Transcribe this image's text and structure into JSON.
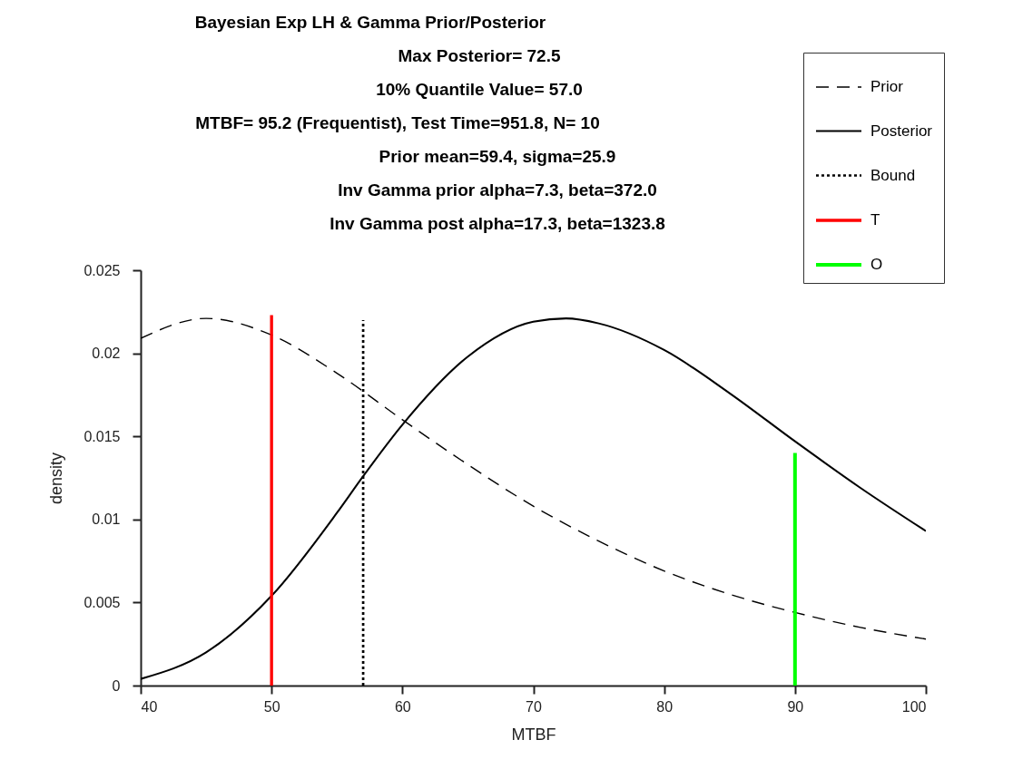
{
  "chart_data": {
    "type": "line",
    "title": "Bayesian Exp LH & Gamma Prior/Posterior",
    "annotations": [
      "Max Posterior= 72.5",
      "10% Quantile Value= 57.0",
      "MTBF= 95.2 (Frequentist), Test Time=951.8, N= 10",
      "Prior mean=59.4, sigma=25.9",
      "Inv Gamma prior alpha=7.3, beta=372.0",
      "Inv Gamma post alpha=17.3, beta=1323.8"
    ],
    "xlabel": "MTBF",
    "ylabel": "density",
    "x": [
      40,
      45,
      50,
      55,
      60,
      65,
      70,
      75,
      80,
      85,
      90,
      95,
      100
    ],
    "series": [
      {
        "name": "Prior",
        "color": "#000000",
        "line_style": "dashed",
        "values": [
          0.0209,
          0.0221,
          0.0211,
          0.0188,
          0.016,
          0.0133,
          0.0108,
          0.0087,
          0.0069,
          0.0055,
          0.0044,
          0.0035,
          0.0028
        ]
      },
      {
        "name": "Posterior",
        "color": "#000000",
        "line_style": "solid",
        "x": [
          40,
          45,
          50,
          55,
          57,
          60,
          65,
          70,
          72.5,
          75,
          80,
          85,
          90,
          95,
          100
        ],
        "values": [
          0.0004,
          0.002,
          0.0054,
          0.0104,
          0.0126,
          0.0157,
          0.0198,
          0.0219,
          0.0221,
          0.0218,
          0.0202,
          0.0176,
          0.0147,
          0.0119,
          0.0093
        ]
      },
      {
        "name": "Bound",
        "color": "#000000",
        "line_style": "dotted",
        "x": [
          57,
          57
        ],
        "values": [
          0,
          0.022
        ]
      },
      {
        "name": "T",
        "color": "#ff0000",
        "line_style": "solid",
        "x": [
          50,
          50
        ],
        "values": [
          0,
          0.0223
        ]
      },
      {
        "name": "O",
        "color": "#00ff00",
        "line_style": "solid",
        "x": [
          90,
          90
        ],
        "values": [
          0,
          0.014
        ]
      }
    ],
    "xlim": [
      40,
      100
    ],
    "xticks": [
      40,
      50,
      60,
      70,
      80,
      90,
      100
    ],
    "ylim": [
      0,
      0.025
    ],
    "yticks": [
      0,
      0.005,
      0.01,
      0.015,
      0.02,
      0.025
    ],
    "grid": false,
    "legend": "top right",
    "marker": "none"
  }
}
